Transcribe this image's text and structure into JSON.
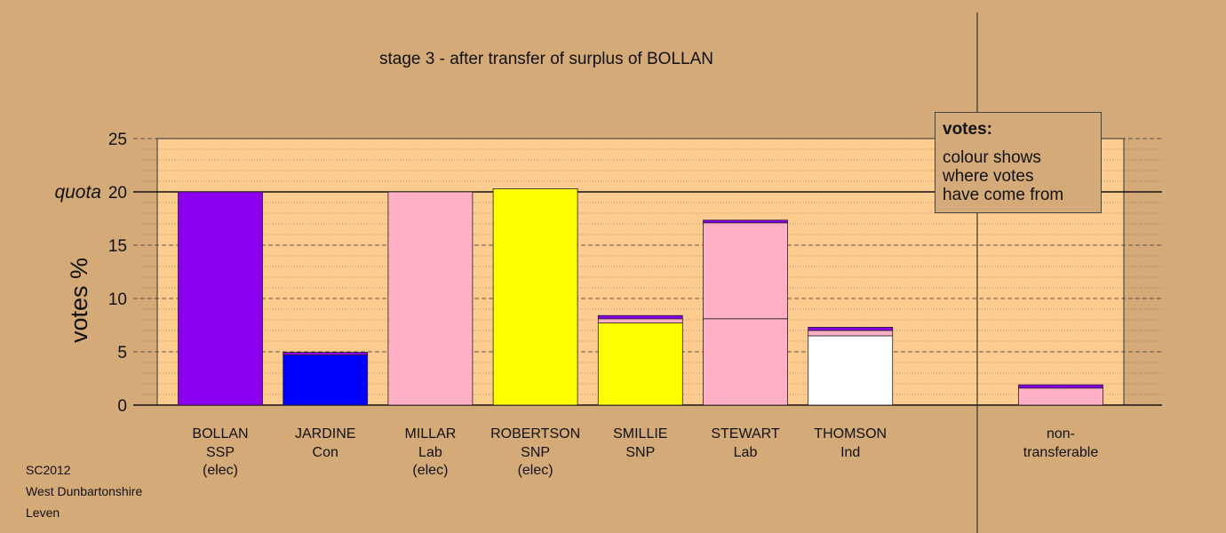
{
  "chart_data": {
    "type": "bar",
    "title": "stage 3 - after transfer of surplus of BOLLAN",
    "ylabel": "votes %",
    "ylim": [
      0,
      25
    ],
    "yticks": [
      0,
      5,
      10,
      15,
      20,
      25
    ],
    "quota": 20,
    "quota_label": "quota",
    "grid": true,
    "candidates": [
      {
        "name": "BOLLAN",
        "party": "SSP",
        "status": "(elec)",
        "segments": [
          {
            "color": "#8b00ee",
            "value": 20.0
          }
        ]
      },
      {
        "name": "JARDINE",
        "party": "Con",
        "status": "",
        "segments": [
          {
            "color": "#0000ff",
            "value": 4.7
          },
          {
            "color": "#8b00ee",
            "value": 0.25
          }
        ]
      },
      {
        "name": "MILLAR",
        "party": "Lab",
        "status": "(elec)",
        "segments": [
          {
            "color": "#ffb0c4",
            "value": 20.0
          }
        ]
      },
      {
        "name": "ROBERTSON",
        "party": "SNP",
        "status": "(elec)",
        "segments": [
          {
            "color": "#ffff00",
            "value": 20.3
          }
        ]
      },
      {
        "name": "SMILLIE",
        "party": "SNP",
        "status": "",
        "segments": [
          {
            "color": "#ffff00",
            "value": 7.7
          },
          {
            "color": "#ffb0c4",
            "value": 0.4
          },
          {
            "color": "#8b00ee",
            "value": 0.3
          }
        ]
      },
      {
        "name": "STEWART",
        "party": "Lab",
        "status": "",
        "segments": [
          {
            "color": "#ffb0c4",
            "value": 8.1
          },
          {
            "color": "#ffb0c4",
            "value": 9.0
          },
          {
            "color": "#8b00ee",
            "value": 0.25
          }
        ]
      },
      {
        "name": "THOMSON",
        "party": "Ind",
        "status": "",
        "segments": [
          {
            "color": "#ffffff",
            "value": 6.5
          },
          {
            "color": "#ffb0c4",
            "value": 0.5
          },
          {
            "color": "#8b00ee",
            "value": 0.3
          }
        ]
      }
    ],
    "nontransferable": {
      "label_line1": "non-",
      "label_line2": "transferable",
      "segments": [
        {
          "color": "#ffb0c4",
          "value": 1.6
        },
        {
          "color": "#8b00ee",
          "value": 0.3
        }
      ]
    }
  },
  "legend": {
    "title": "votes:",
    "lines": [
      "colour shows",
      "where votes",
      "have come from"
    ]
  },
  "footer": {
    "line1": "SC2012",
    "line2": "West Dunbartonshire",
    "line3": "Leven"
  },
  "colors": {
    "background": "#d4aa78",
    "plot_area": "#ffcc90"
  }
}
